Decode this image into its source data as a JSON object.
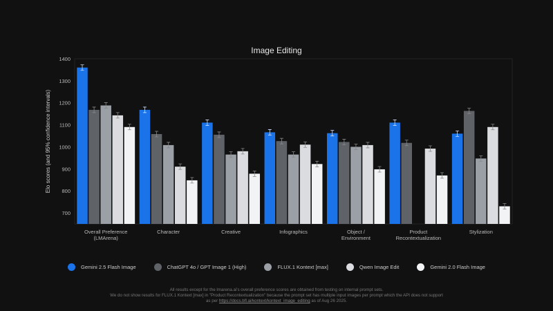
{
  "chart_data": {
    "type": "bar",
    "title": "Image Editing",
    "ylabel": "Elo scores (and 95% confidence intervals)",
    "xlabel": "",
    "ylim": [
      650,
      1400
    ],
    "yticks": [
      700,
      800,
      900,
      1000,
      1100,
      1200,
      1300,
      1400
    ],
    "grid": false,
    "legend_position": "bottom",
    "categories": [
      "Overall Preference\n(LMArena)",
      "Character",
      "Creative",
      "Infographics",
      "Object /\nEnvironment",
      "Product\nRecontextualization",
      "Stylization"
    ],
    "series": [
      {
        "name": "Gemini 2.5 Flash Image",
        "color": "#1a73e8",
        "values": [
          1360,
          1168,
          1110,
          1066,
          1062,
          1110,
          1060
        ]
      },
      {
        "name": "ChatGPT 4o / GPT Image 1 (High)",
        "color": "#5f6368",
        "values": [
          1168,
          1058,
          1055,
          1026,
          1022,
          1018,
          1163
        ]
      },
      {
        "name": "FLUX.1 Kontext [max]",
        "color": "#9aa0a6",
        "values": [
          1188,
          1008,
          965,
          965,
          1000,
          null,
          947
        ]
      },
      {
        "name": "Qwen Image Edit",
        "color": "#dadce0",
        "values": [
          1143,
          910,
          980,
          1010,
          1008,
          992,
          1090
        ]
      },
      {
        "name": "Gemini 2.0 Flash Image",
        "color": "#f1f3f4",
        "values": [
          1090,
          848,
          878,
          922,
          898,
          870,
          730
        ]
      }
    ]
  },
  "notes": {
    "line1": "All results except for the lmarena.ai's overall preference scores are obtained from testing on internal prompt sets.",
    "line2": "We do not show results for FLUX.1 Kontext [max] in \"Product Recontextualization\" because the prompt set has multiple input images per prompt which the API does not support",
    "line3_pre": "as per",
    "link": "https://docs.bfl.ai/kontext/kontext_image_editing",
    "line3_post": "as of Aug 26 2025."
  }
}
